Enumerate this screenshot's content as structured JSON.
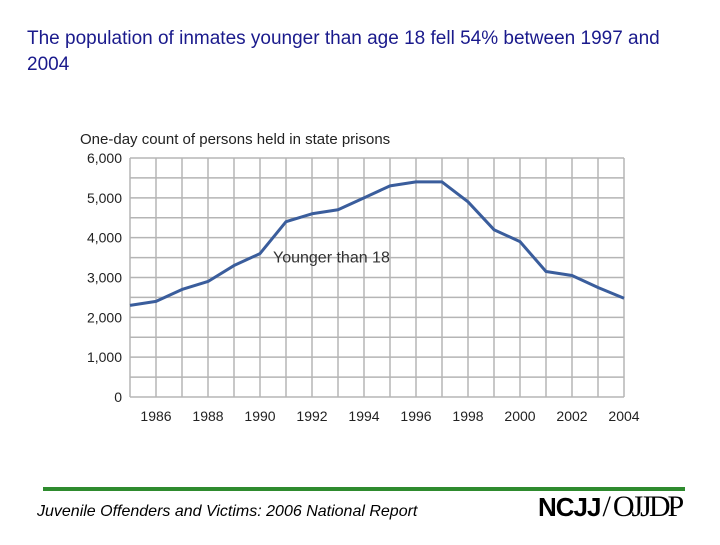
{
  "slide": {
    "title": "The population of inmates younger than age 18 fell 54% between 1997 and 2004",
    "footer": "Juvenile Offenders and Victims: 2006 National Report",
    "logo": {
      "left": "NCJJ",
      "slash": "/",
      "right": "OJJDP"
    }
  },
  "chart_data": {
    "type": "line",
    "title": "One-day count of persons held in state prisons",
    "xlabel": "",
    "ylabel": "",
    "ylim": [
      0,
      6000
    ],
    "xlim": [
      1985,
      2004
    ],
    "grid": true,
    "x_ticks": [
      "1986",
      "1988",
      "1990",
      "1992",
      "1994",
      "1996",
      "1998",
      "2000",
      "2002",
      "2004"
    ],
    "y_ticks": [
      "0",
      "1,000",
      "2,000",
      "3,000",
      "4,000",
      "5,000",
      "6,000"
    ],
    "series": [
      {
        "name": "Younger than 18",
        "color": "#3a5d9c",
        "x": [
          1985,
          1986,
          1987,
          1988,
          1989,
          1990,
          1991,
          1992,
          1993,
          1994,
          1995,
          1996,
          1997,
          1998,
          1999,
          2000,
          2001,
          2002,
          2003,
          2004
        ],
        "values": [
          2300,
          2400,
          2700,
          2900,
          3300,
          3600,
          4400,
          4600,
          4700,
          5000,
          5300,
          5400,
          5400,
          4900,
          4200,
          3900,
          3150,
          3050,
          2750,
          2480
        ]
      }
    ],
    "annotations": [
      {
        "text": "Younger than 18",
        "x": 1990.5,
        "y": 3500
      }
    ]
  }
}
